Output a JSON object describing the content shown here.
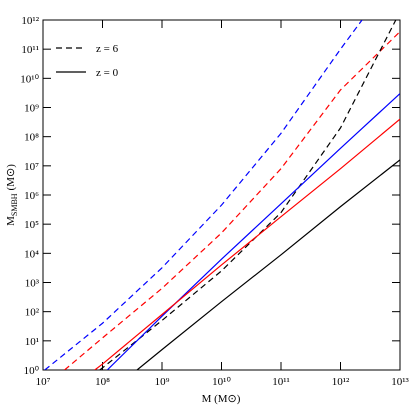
{
  "chart_data": {
    "type": "line",
    "xlabel": "M (M⊙)",
    "ylabel": "M",
    "ylabel_sub": "SMBH",
    "ylabel_unit": "(M⊙)",
    "xscale": "log",
    "yscale": "log",
    "xlim": [
      10000000.0,
      10000000000000.0
    ],
    "ylim": [
      1,
      1000000000000.0
    ],
    "xticks": [
      {
        "value": 10000000.0,
        "label": "10⁷"
      },
      {
        "value": 100000000.0,
        "label": "10⁸"
      },
      {
        "value": 1000000000.0,
        "label": "10⁹"
      },
      {
        "value": 10000000000.0,
        "label": "10¹⁰"
      },
      {
        "value": 100000000000.0,
        "label": "10¹¹"
      },
      {
        "value": 1000000000000.0,
        "label": "10¹²"
      },
      {
        "value": 10000000000000.0,
        "label": "10¹³"
      }
    ],
    "yticks": [
      {
        "value": 1,
        "label": "10⁰"
      },
      {
        "value": 10,
        "label": "10¹"
      },
      {
        "value": 100,
        "label": "10²"
      },
      {
        "value": 1000,
        "label": "10³"
      },
      {
        "value": 10000,
        "label": "10⁴"
      },
      {
        "value": 100000,
        "label": "10⁵"
      },
      {
        "value": 1000000,
        "label": "10⁶"
      },
      {
        "value": 10000000,
        "label": "10⁷"
      },
      {
        "value": 100000000,
        "label": "10⁸"
      },
      {
        "value": 1000000000,
        "label": "10⁹"
      },
      {
        "value": 10000000000,
        "label": "10¹⁰"
      },
      {
        "value": 100000000000,
        "label": "10¹¹"
      },
      {
        "value": 1000000000000,
        "label": "10¹²"
      }
    ],
    "legend": [
      {
        "label": "z = 6",
        "color": "#000000",
        "dashed": true
      },
      {
        "label": "z = 0",
        "color": "#000000",
        "dashed": false
      }
    ],
    "series": [
      {
        "color": "#0000ff",
        "dashed": true,
        "x": [
          10700000.0,
          100000000.0,
          1000000000.0,
          10000000000.0,
          100000000000.0,
          1000000000000.0,
          2300000000000.0
        ],
        "values": [
          1,
          40,
          3200,
          450000,
          130000000.0,
          100000000000.0,
          1000000000000.0
        ]
      },
      {
        "color": "#ff0000",
        "dashed": true,
        "x": [
          23000000.0,
          100000000.0,
          1000000000.0,
          10000000000.0,
          100000000000.0,
          1000000000000.0,
          10000000000000.0
        ],
        "values": [
          1,
          12.6,
          630,
          50000,
          8000000.0,
          4000000000.0,
          400000000000.0
        ]
      },
      {
        "color": "#000000",
        "dashed": true,
        "x": [
          90000000.0,
          1000000000.0,
          10000000000.0,
          100000000000.0,
          1000000000000.0,
          8500000000000.0
        ],
        "values": [
          1,
          50,
          2500,
          250000,
          200000000.0,
          1000000000000.0
        ]
      },
      {
        "color": "#0000ff",
        "dashed": false,
        "x": [
          120000000.0,
          1000000000.0,
          10000000000.0,
          100000000000.0,
          1000000000000.0,
          10000000000000.0
        ],
        "values": [
          1,
          70,
          6300,
          500000,
          40000000.0,
          3000000000.0
        ]
      },
      {
        "color": "#ff0000",
        "dashed": false,
        "x": [
          74000000.0,
          100000000.0,
          1000000000.0,
          10000000000.0,
          100000000000.0,
          1000000000000.0,
          10000000000000.0
        ],
        "values": [
          1,
          1.6,
          80,
          4000,
          180000,
          8000000.0,
          400000000.0
        ]
      },
      {
        "color": "#000000",
        "dashed": false,
        "x": [
          380000000.0,
          1000000000.0,
          10000000000.0,
          100000000000.0,
          1000000000000.0,
          10000000000000.0
        ],
        "values": [
          1,
          5,
          220,
          8900,
          400000,
          16000000.0
        ]
      }
    ]
  }
}
